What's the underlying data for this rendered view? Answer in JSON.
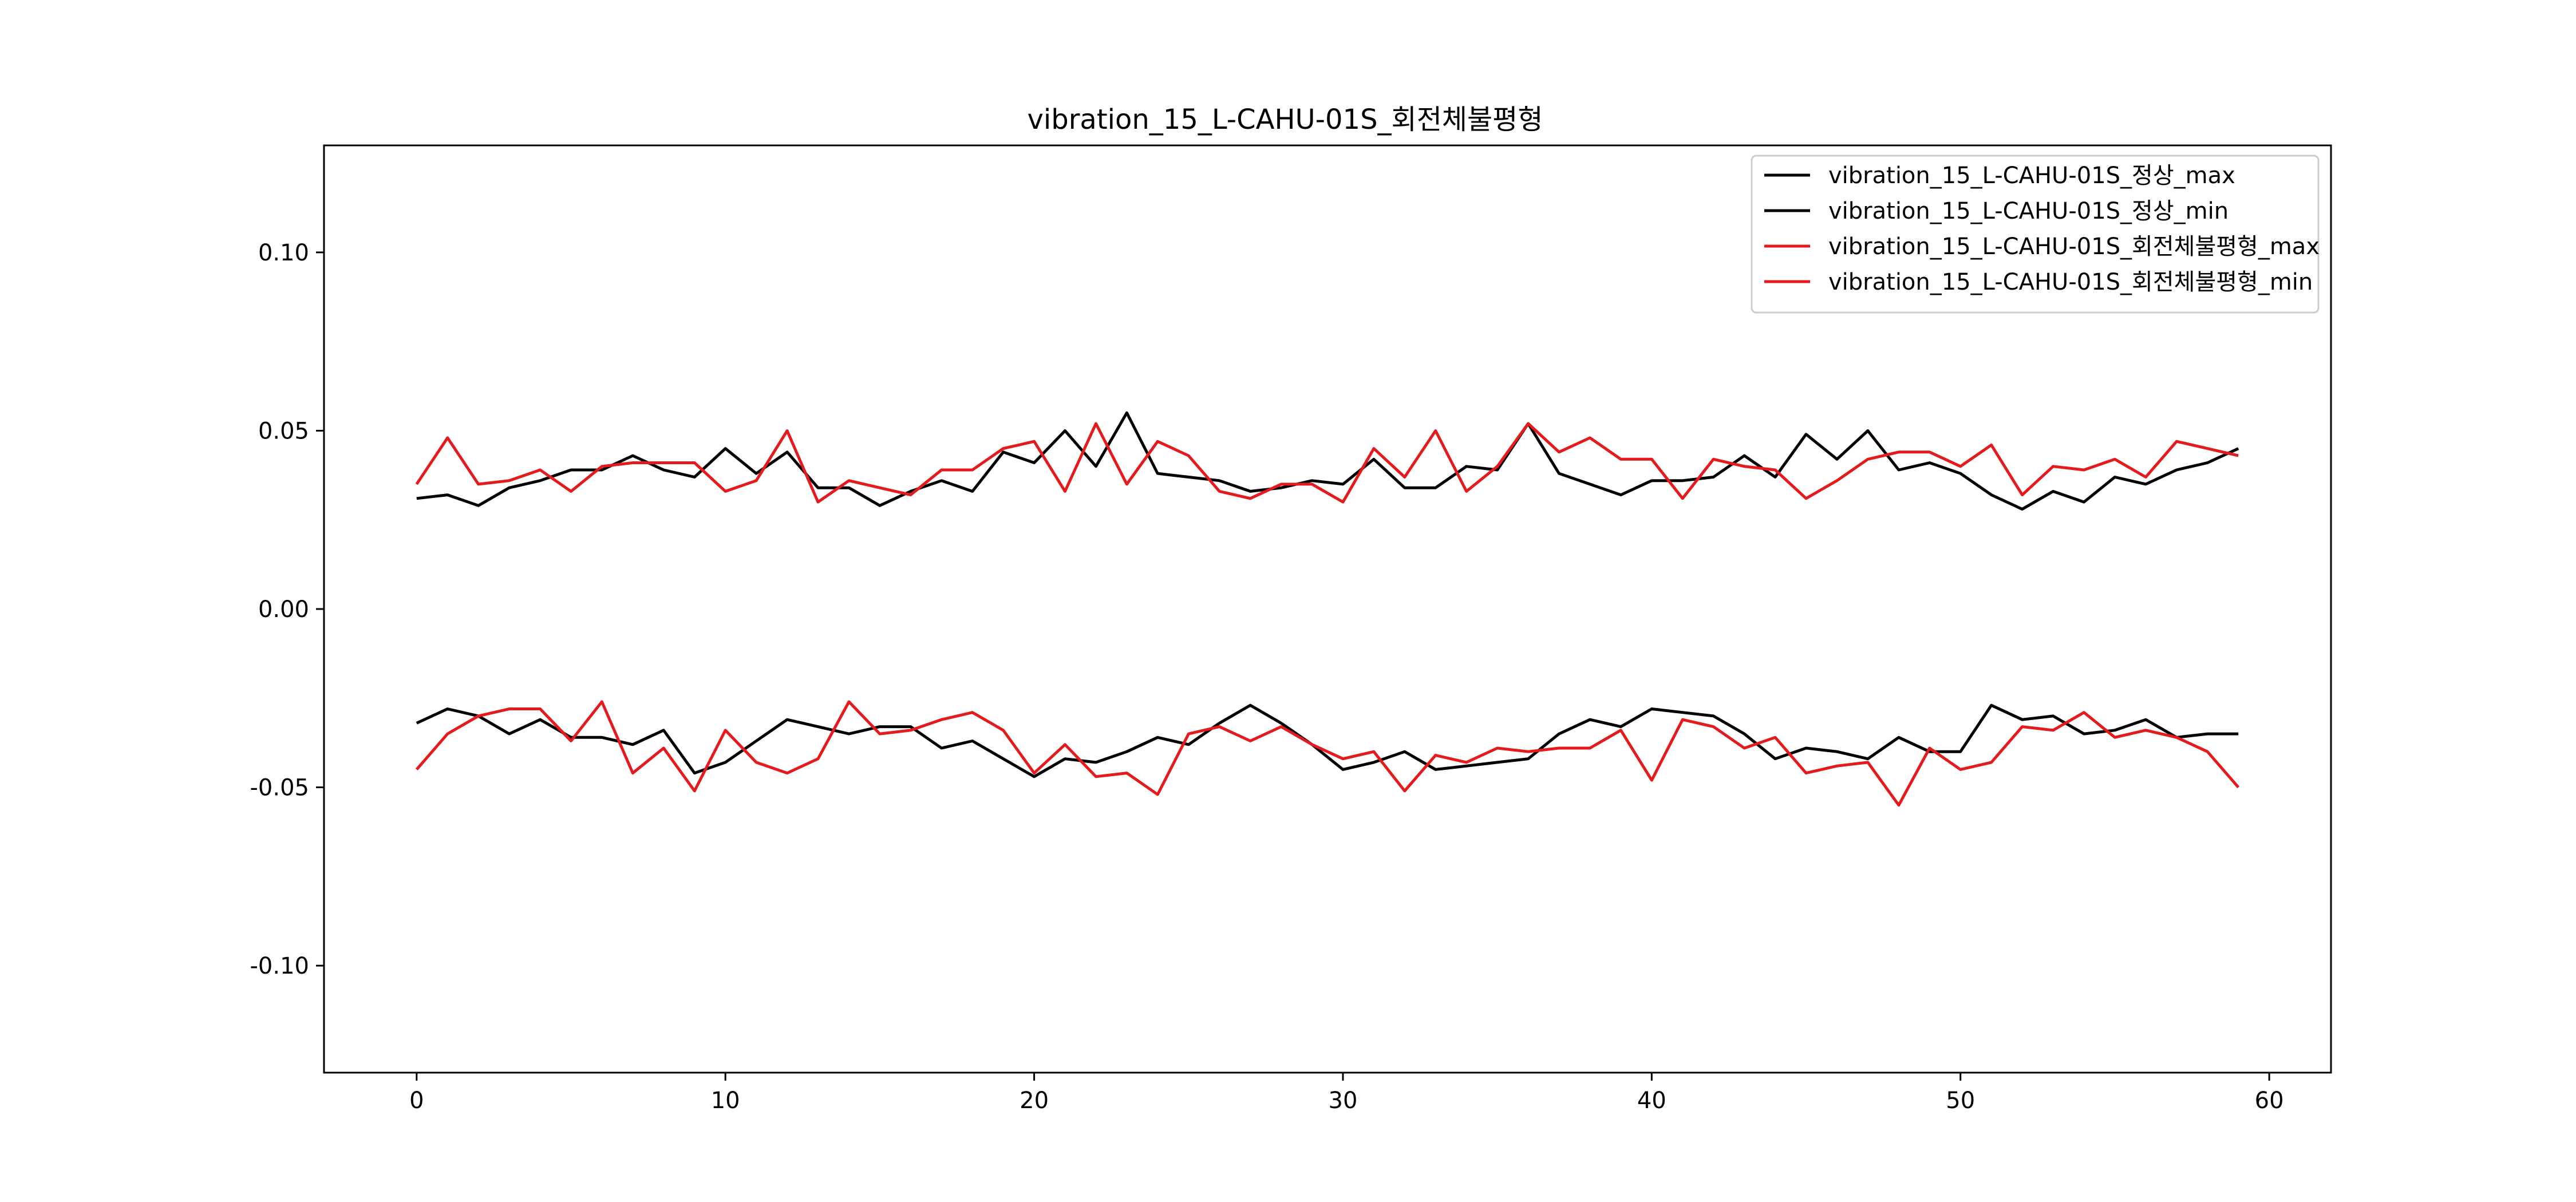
{
  "chart_data": {
    "type": "line",
    "title": "vibration_15_L-CAHU-01S_회전체불평형",
    "xlabel": "",
    "ylabel": "",
    "xlim": [
      -3,
      62
    ],
    "ylim": [
      -0.13,
      0.13
    ],
    "xticks": [
      0,
      10,
      20,
      30,
      40,
      50,
      60
    ],
    "yticks": [
      0.1,
      0.05,
      0.0,
      -0.05,
      -0.1
    ],
    "xtick_labels": [
      "0",
      "10",
      "20",
      "30",
      "40",
      "50",
      "60"
    ],
    "ytick_labels": [
      "0.10",
      "0.05",
      "0.00",
      "-0.05",
      "-0.10"
    ],
    "grid": false,
    "legend_position": "top-right",
    "series": [
      {
        "name": "vibration_15_L-CAHU-01S_정상_max",
        "color": "#000000",
        "y": [
          0.031,
          0.032,
          0.029,
          0.034,
          0.036,
          0.039,
          0.039,
          0.043,
          0.039,
          0.037,
          0.045,
          0.038,
          0.044,
          0.034,
          0.034,
          0.029,
          0.033,
          0.036,
          0.033,
          0.044,
          0.041,
          0.05,
          0.04,
          0.055,
          0.038,
          0.037,
          0.036,
          0.033,
          0.034,
          0.036,
          0.035,
          0.042,
          0.034,
          0.034,
          0.04,
          0.039,
          0.052,
          0.038,
          0.035,
          0.032,
          0.036,
          0.036,
          0.037,
          0.043,
          0.037,
          0.049,
          0.042,
          0.05,
          0.039,
          0.041,
          0.038,
          0.032,
          0.028,
          0.033,
          0.03,
          0.037,
          0.035,
          0.039,
          0.041,
          0.045
        ]
      },
      {
        "name": "vibration_15_L-CAHU-01S_정상_min",
        "color": "#000000",
        "y": [
          -0.032,
          -0.028,
          -0.03,
          -0.035,
          -0.031,
          -0.036,
          -0.036,
          -0.038,
          -0.034,
          -0.046,
          -0.043,
          -0.037,
          -0.031,
          -0.033,
          -0.035,
          -0.033,
          -0.033,
          -0.039,
          -0.037,
          -0.042,
          -0.047,
          -0.042,
          -0.043,
          -0.04,
          -0.036,
          -0.038,
          -0.032,
          -0.027,
          -0.032,
          -0.038,
          -0.045,
          -0.043,
          -0.04,
          -0.045,
          -0.044,
          -0.043,
          -0.042,
          -0.035,
          -0.031,
          -0.033,
          -0.028,
          -0.029,
          -0.03,
          -0.035,
          -0.042,
          -0.039,
          -0.04,
          -0.042,
          -0.036,
          -0.04,
          -0.04,
          -0.027,
          -0.031,
          -0.03,
          -0.035,
          -0.034,
          -0.031,
          -0.036,
          -0.035,
          -0.035
        ]
      },
      {
        "name": "vibration_15_L-CAHU-01S_회전체불평형_max",
        "color": "#e41a1c",
        "y": [
          0.035,
          0.048,
          0.035,
          0.036,
          0.039,
          0.033,
          0.04,
          0.041,
          0.041,
          0.041,
          0.033,
          0.036,
          0.05,
          0.03,
          0.036,
          0.034,
          0.032,
          0.039,
          0.039,
          0.045,
          0.047,
          0.033,
          0.052,
          0.035,
          0.047,
          0.043,
          0.033,
          0.031,
          0.035,
          0.035,
          0.03,
          0.045,
          0.037,
          0.05,
          0.033,
          0.04,
          0.052,
          0.044,
          0.048,
          0.042,
          0.042,
          0.031,
          0.042,
          0.04,
          0.039,
          0.031,
          0.036,
          0.042,
          0.044,
          0.044,
          0.04,
          0.046,
          0.032,
          0.04,
          0.039,
          0.042,
          0.037,
          0.047,
          0.045,
          0.043
        ]
      },
      {
        "name": "vibration_15_L-CAHU-01S_회전체불평형_min",
        "color": "#e41a1c",
        "y": [
          -0.045,
          -0.035,
          -0.03,
          -0.028,
          -0.028,
          -0.037,
          -0.026,
          -0.046,
          -0.039,
          -0.051,
          -0.034,
          -0.043,
          -0.046,
          -0.042,
          -0.026,
          -0.035,
          -0.034,
          -0.031,
          -0.029,
          -0.034,
          -0.046,
          -0.038,
          -0.047,
          -0.046,
          -0.052,
          -0.035,
          -0.033,
          -0.037,
          -0.033,
          -0.038,
          -0.042,
          -0.04,
          -0.051,
          -0.041,
          -0.043,
          -0.039,
          -0.04,
          -0.039,
          -0.039,
          -0.034,
          -0.048,
          -0.031,
          -0.033,
          -0.039,
          -0.036,
          -0.046,
          -0.044,
          -0.043,
          -0.055,
          -0.039,
          -0.045,
          -0.043,
          -0.033,
          -0.034,
          -0.029,
          -0.036,
          -0.034,
          -0.036,
          -0.04,
          -0.05
        ]
      }
    ]
  }
}
